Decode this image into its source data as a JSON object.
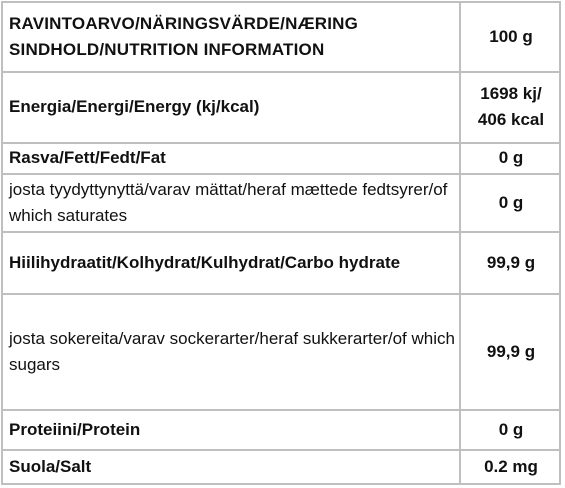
{
  "table": {
    "header": {
      "label": "RAVINTOARVO/NÄRINGSVÄRDE/NÆRING SINDHOLD/NUTRITION INFORMATION",
      "value": "100 g"
    },
    "rows": [
      {
        "label": "Energia/Energi/Energy (kj/kcal)",
        "value": "1698 kj/ 406 kcal"
      },
      {
        "label": "Rasva/Fett/Fedt/Fat",
        "value": "0 g"
      },
      {
        "label": "josta tyydyttynyttä/varav mättat/heraf mættede fedtsyrer/of which saturates",
        "value": "0 g"
      },
      {
        "label": "Hiilihydraatit/Kolhydrat/Kulhydrat/Carbo hydrate",
        "value": "99,9 g"
      },
      {
        "label": "josta sokereita/varav sockerarter/heraf sukkerarter/of which sugars",
        "value": "99,9 g"
      },
      {
        "label": "Proteiini/Protein",
        "value": "0 g"
      },
      {
        "label": "Suola/Salt",
        "value": "0.2 mg"
      }
    ]
  }
}
